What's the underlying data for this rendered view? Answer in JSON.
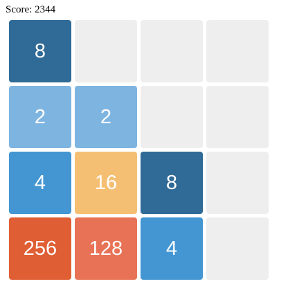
{
  "header": {
    "score_label": "Score:",
    "score_value": "2344"
  },
  "board": {
    "rows": [
      [
        "8",
        "",
        "",
        ""
      ],
      [
        "2",
        "2",
        "",
        ""
      ],
      [
        "4",
        "16",
        "8",
        ""
      ],
      [
        "256",
        "128",
        "4",
        ""
      ]
    ]
  },
  "colors": {
    "empty": "#eeeeee",
    "2": "#7eb4e0",
    "4": "#4396d2",
    "8": "#306a96",
    "16": "#f5bf73",
    "128": "#e87255",
    "256": "#e05e33"
  }
}
